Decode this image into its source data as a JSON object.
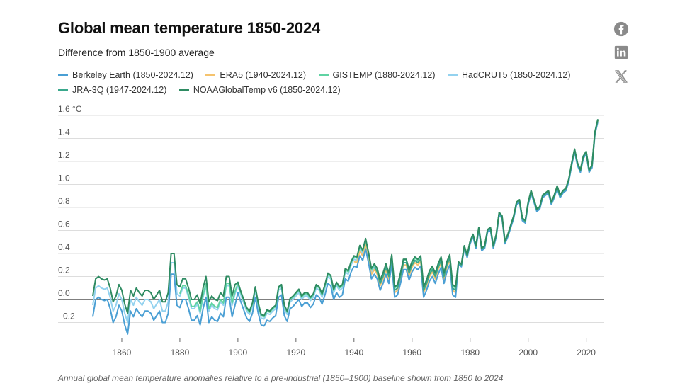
{
  "header": {
    "title": "Global mean temperature 1850-2024",
    "subtitle": "Difference from 1850-1900 average"
  },
  "share_icons": [
    {
      "name": "facebook-icon"
    },
    {
      "name": "linkedin-icon"
    },
    {
      "name": "x-twitter-icon"
    }
  ],
  "caption": "Annual global mean temperature anomalies relative to a pre-industrial (1850–1900) baseline shown from 1850 to 2024",
  "chart_data": {
    "type": "line",
    "title": "Global mean temperature 1850-2024",
    "subtitle": "Difference from 1850-1900 average",
    "xlabel": "",
    "ylabel": "°C",
    "xlim": [
      1850,
      2024
    ],
    "ylim": [
      -0.3,
      1.6
    ],
    "x_ticks": [
      1860,
      1880,
      1900,
      1920,
      1940,
      1960,
      1980,
      2000,
      2020
    ],
    "y_ticks": [
      {
        "value": 1.6,
        "label": "1.6 °C"
      },
      {
        "value": 1.4,
        "label": "1.4"
      },
      {
        "value": 1.2,
        "label": "1.2"
      },
      {
        "value": 1.0,
        "label": "1.0"
      },
      {
        "value": 0.8,
        "label": "0.8"
      },
      {
        "value": 0.6,
        "label": "0.6"
      },
      {
        "value": 0.4,
        "label": "0.4"
      },
      {
        "value": 0.2,
        "label": "0.2"
      },
      {
        "value": 0.0,
        "label": "0.0"
      },
      {
        "value": -0.2,
        "label": "−0.2"
      }
    ],
    "grid": true,
    "zero_line": true,
    "legend_position": "top",
    "series": [
      {
        "name": "Berkeley Earth (1850-2024.12)",
        "color": "#4a9fd4",
        "start": 1850,
        "offset": -0.06
      },
      {
        "name": "ERA5 (1940-2024.12)",
        "color": "#f5c36e",
        "start": 1940,
        "offset": -0.02
      },
      {
        "name": "GISTEMP (1880-2024.12)",
        "color": "#5fd3a3",
        "start": 1880,
        "offset": 0.02
      },
      {
        "name": "HadCRUT5 (1850-2024.12)",
        "color": "#93d2ef",
        "start": 1850,
        "offset": 0.0
      },
      {
        "name": "JRA-3Q (1947-2024.12)",
        "color": "#3aa88c",
        "start": 1947,
        "offset": 0.0
      },
      {
        "name": "NOAAGlobalTemp v6 (1850-2024.12)",
        "color": "#2e8b62",
        "start": 1850,
        "offset": 0.03
      }
    ],
    "base_values_1850_2024": [
      -0.05,
      0.1,
      0.12,
      0.1,
      0.09,
      0.1,
      0.02,
      -0.1,
      -0.05,
      0.05,
      0.0,
      -0.12,
      -0.2,
      0.0,
      -0.05,
      0.02,
      -0.02,
      -0.05,
      0.0,
      0.0,
      -0.02,
      -0.08,
      -0.04,
      0.0,
      -0.1,
      -0.1,
      -0.02,
      0.32,
      0.32,
      0.05,
      0.03,
      0.1,
      0.1,
      0.02,
      -0.08,
      -0.08,
      -0.04,
      -0.12,
      0.02,
      0.12,
      -0.1,
      -0.05,
      -0.08,
      -0.09,
      -0.02,
      -0.05,
      0.12,
      0.12,
      -0.05,
      0.05,
      0.12,
      0.04,
      -0.03,
      -0.1,
      -0.13,
      -0.06,
      0.08,
      -0.06,
      -0.16,
      -0.17,
      -0.12,
      -0.13,
      -0.1,
      -0.08,
      0.08,
      0.1,
      -0.08,
      -0.13,
      -0.02,
      0.0,
      0.03,
      0.06,
      0.0,
      0.03,
      0.03,
      -0.01,
      0.02,
      0.1,
      0.08,
      0.02,
      0.1,
      0.2,
      0.18,
      0.06,
      0.12,
      0.08,
      0.1,
      0.24,
      0.22,
      0.3,
      0.35,
      0.34,
      0.44,
      0.4,
      0.5,
      0.38,
      0.24,
      0.28,
      0.24,
      0.14,
      0.2,
      0.28,
      0.2,
      0.36,
      0.08,
      0.1,
      0.2,
      0.32,
      0.32,
      0.23,
      0.3,
      0.34,
      0.32,
      0.35,
      0.08,
      0.14,
      0.22,
      0.26,
      0.2,
      0.28,
      0.34,
      0.2,
      0.3,
      0.36,
      0.1,
      0.08,
      0.32,
      0.3,
      0.46,
      0.38,
      0.5,
      0.56,
      0.46,
      0.62,
      0.44,
      0.46,
      0.6,
      0.62,
      0.46,
      0.56,
      0.75,
      0.72,
      0.5,
      0.56,
      0.64,
      0.72,
      0.84,
      0.86,
      0.7,
      0.68,
      0.84,
      0.94,
      0.86,
      0.78,
      0.8,
      0.9,
      0.92,
      0.94,
      0.84,
      0.9,
      0.98,
      0.9,
      0.94,
      0.96,
      1.04,
      1.18,
      1.3,
      1.18,
      1.12,
      1.24,
      1.28,
      1.12,
      1.16,
      1.45,
      1.56
    ]
  }
}
